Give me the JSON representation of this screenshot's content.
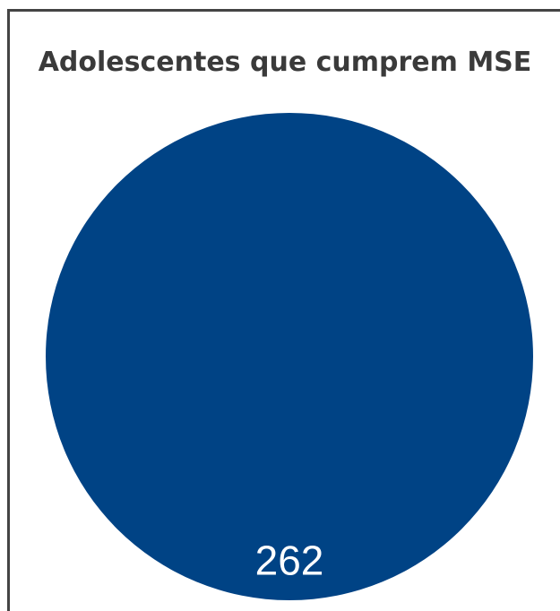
{
  "chart_data": {
    "type": "pie",
    "title": "Adolescentes que cumprem MSE",
    "categories": [
      ""
    ],
    "values": [
      262
    ],
    "data_labels": [
      "262"
    ],
    "colors": [
      "#004385"
    ],
    "legend": "none"
  }
}
